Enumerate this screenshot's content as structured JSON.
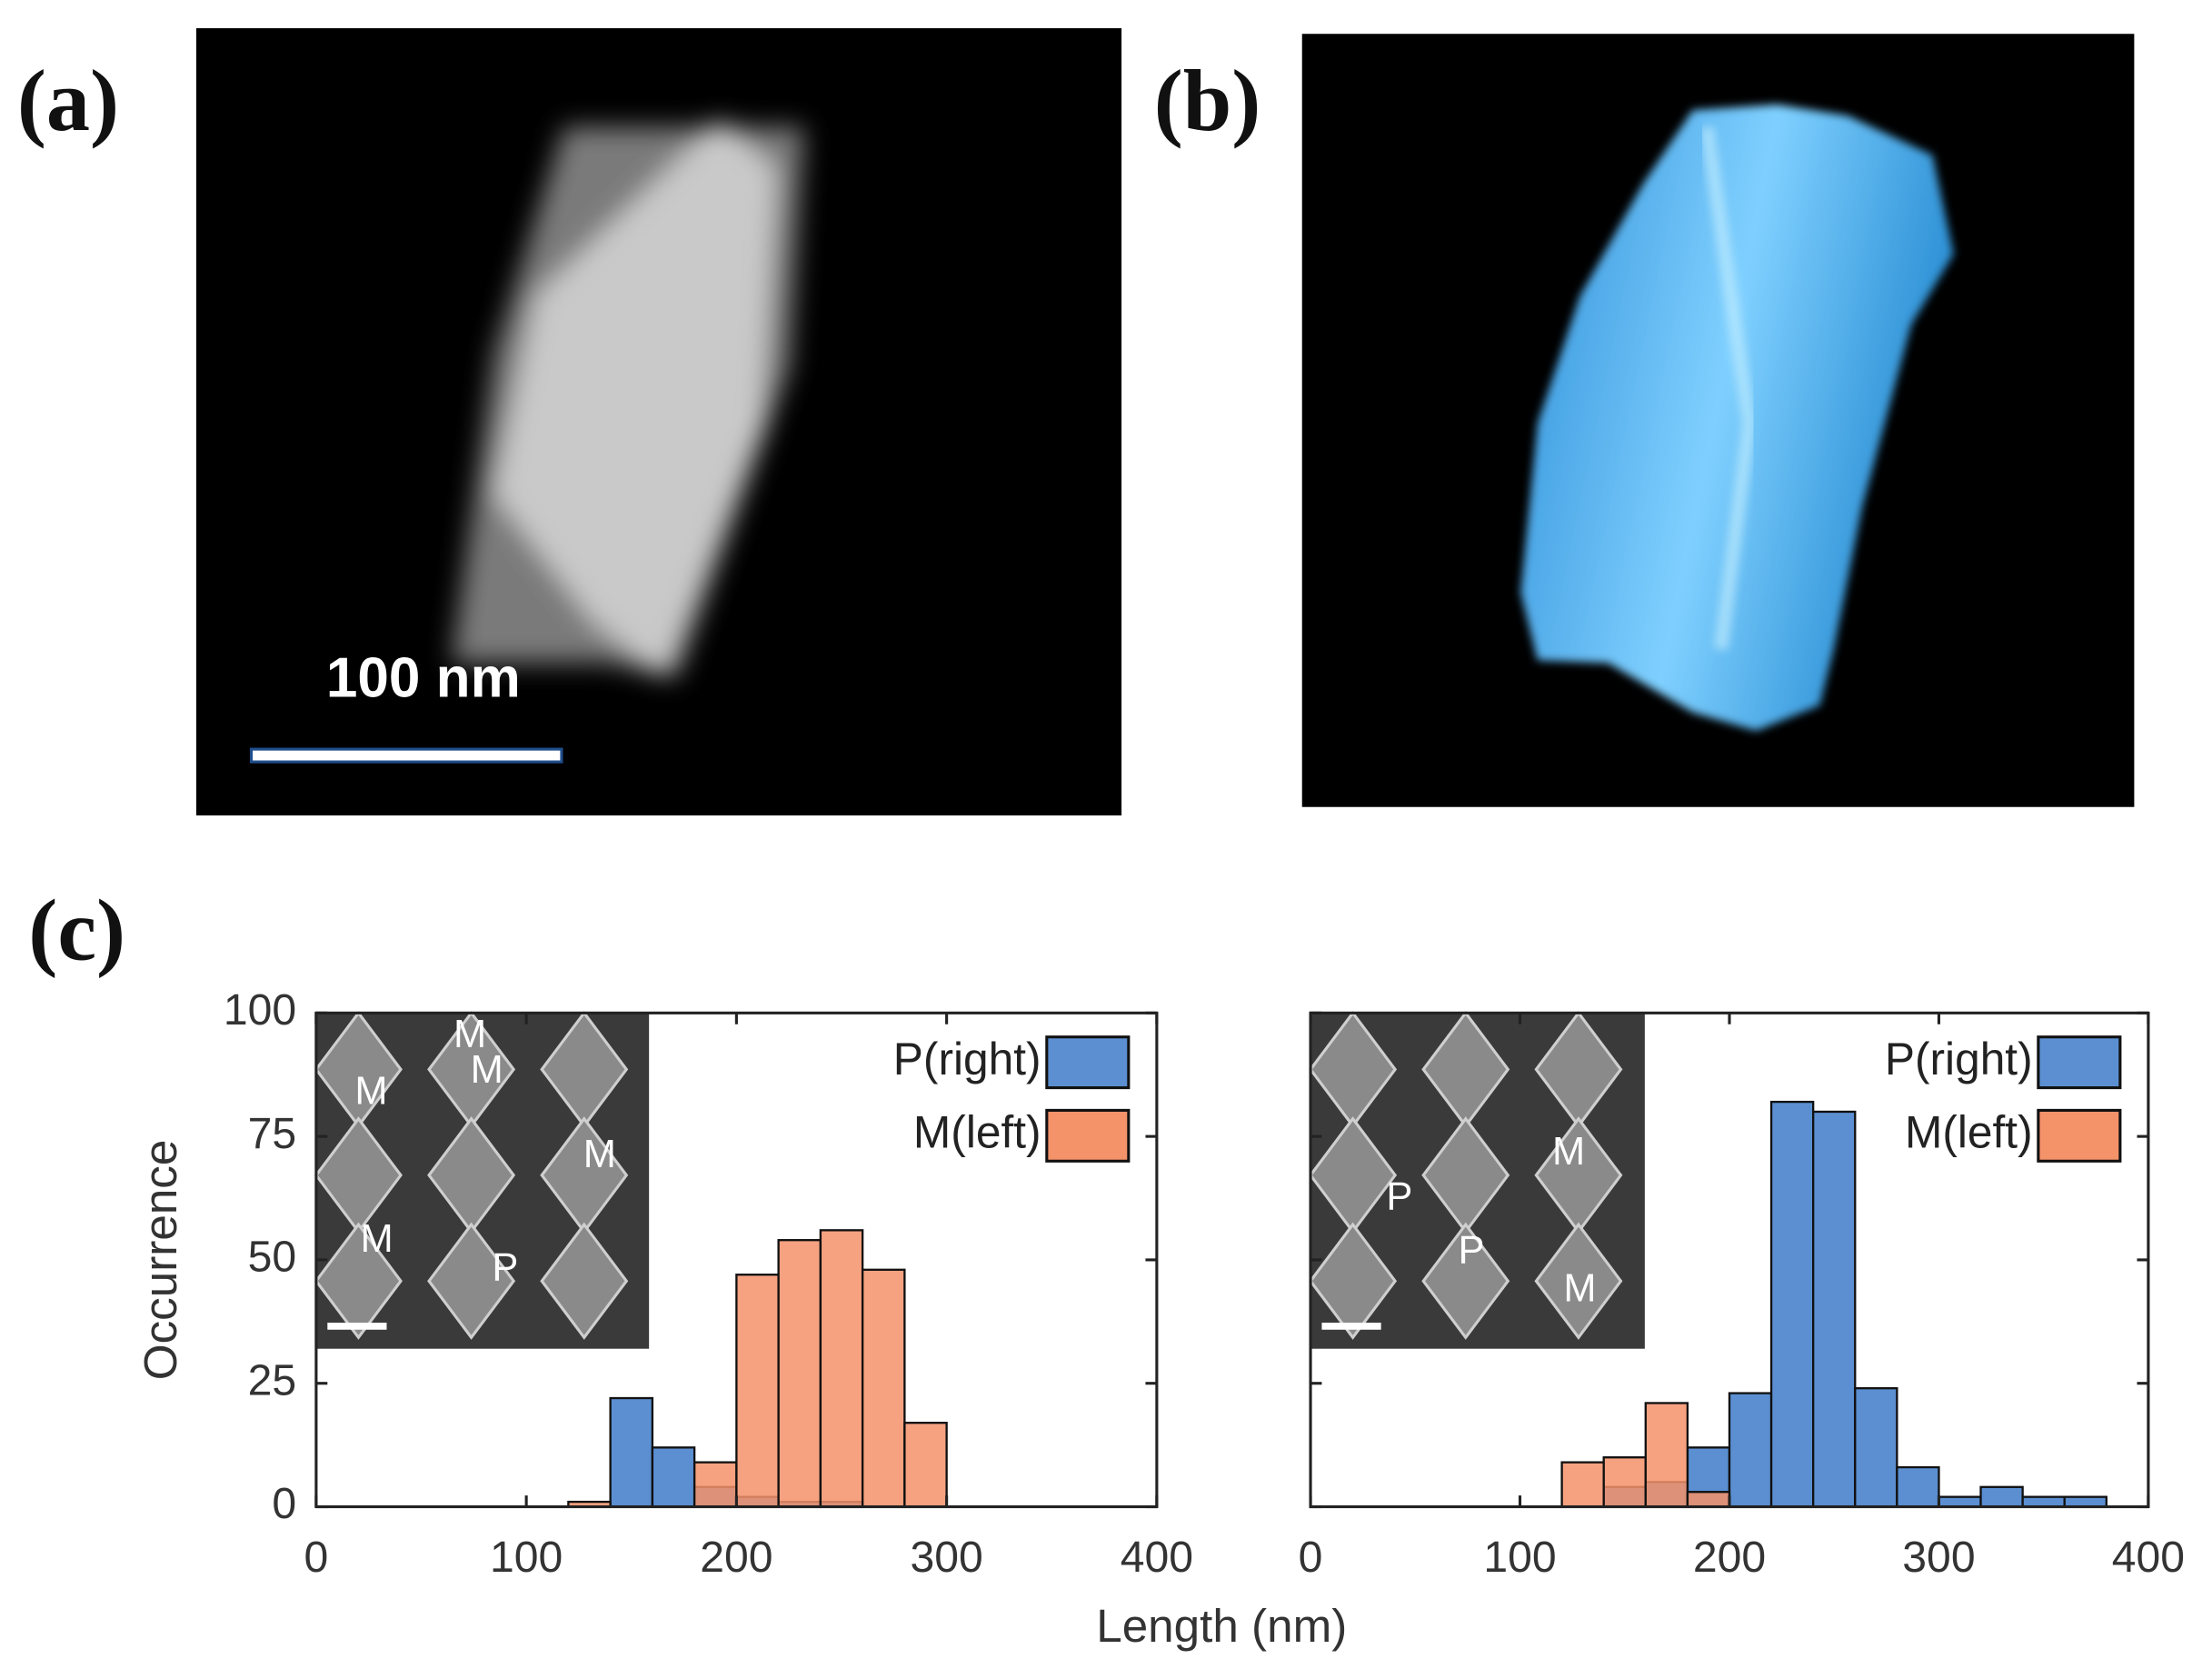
{
  "panels": {
    "a": {
      "label": "(a)",
      "scale_bar": "100 nm"
    },
    "b": {
      "label": "(b)"
    },
    "c": {
      "label": "(c)",
      "xlabel": "Length (nm)"
    }
  },
  "chart_data": [
    {
      "type": "histogram",
      "ylabel": "Occurrence",
      "bins": [
        0,
        20,
        40,
        60,
        80,
        100,
        120,
        140,
        160,
        180,
        200,
        220,
        240,
        260,
        280,
        300,
        320,
        340,
        360,
        380,
        400
      ],
      "series": [
        {
          "name": "P(right)",
          "color": "#5b8fd1",
          "values": [
            0,
            0,
            0,
            0,
            0,
            0,
            0,
            22,
            12,
            4,
            2,
            1,
            1,
            0,
            0,
            0,
            0,
            0,
            0,
            0
          ]
        },
        {
          "name": "M(left)",
          "color": "#f4926a",
          "values": [
            0,
            0,
            0,
            0,
            0,
            0,
            1,
            0,
            0,
            9,
            47,
            54,
            56,
            48,
            17,
            0,
            0,
            0,
            0,
            0
          ]
        }
      ],
      "xlim": [
        0,
        400
      ],
      "ylim": [
        0,
        100
      ],
      "xticks": [
        0,
        100,
        200,
        300,
        400
      ],
      "yticks": [
        0,
        25,
        50,
        75,
        100
      ],
      "show_ytick_labels": true,
      "legend": "upper-right",
      "annotations": [
        "M",
        "M",
        "M",
        "M",
        "M",
        "P"
      ]
    },
    {
      "type": "histogram",
      "bins": [
        0,
        20,
        40,
        60,
        80,
        100,
        120,
        140,
        160,
        180,
        200,
        220,
        240,
        260,
        280,
        300,
        320,
        340,
        360,
        380,
        400
      ],
      "series": [
        {
          "name": "P(right)",
          "color": "#5b8fd1",
          "values": [
            0,
            0,
            0,
            0,
            0,
            0,
            0,
            4,
            5,
            12,
            23,
            82,
            80,
            24,
            8,
            2,
            4,
            2,
            2,
            0
          ]
        },
        {
          "name": "M(left)",
          "color": "#f4926a",
          "values": [
            0,
            0,
            0,
            0,
            0,
            0,
            9,
            10,
            21,
            3,
            0,
            0,
            0,
            0,
            0,
            0,
            0,
            0,
            0,
            0
          ]
        }
      ],
      "xlim": [
        0,
        400
      ],
      "ylim": [
        0,
        100
      ],
      "xticks": [
        0,
        100,
        200,
        300,
        400
      ],
      "yticks": [
        0,
        25,
        50,
        75,
        100
      ],
      "show_ytick_labels": false,
      "legend": "upper-right",
      "annotations": [
        "M",
        "P",
        "P",
        "M"
      ]
    }
  ]
}
